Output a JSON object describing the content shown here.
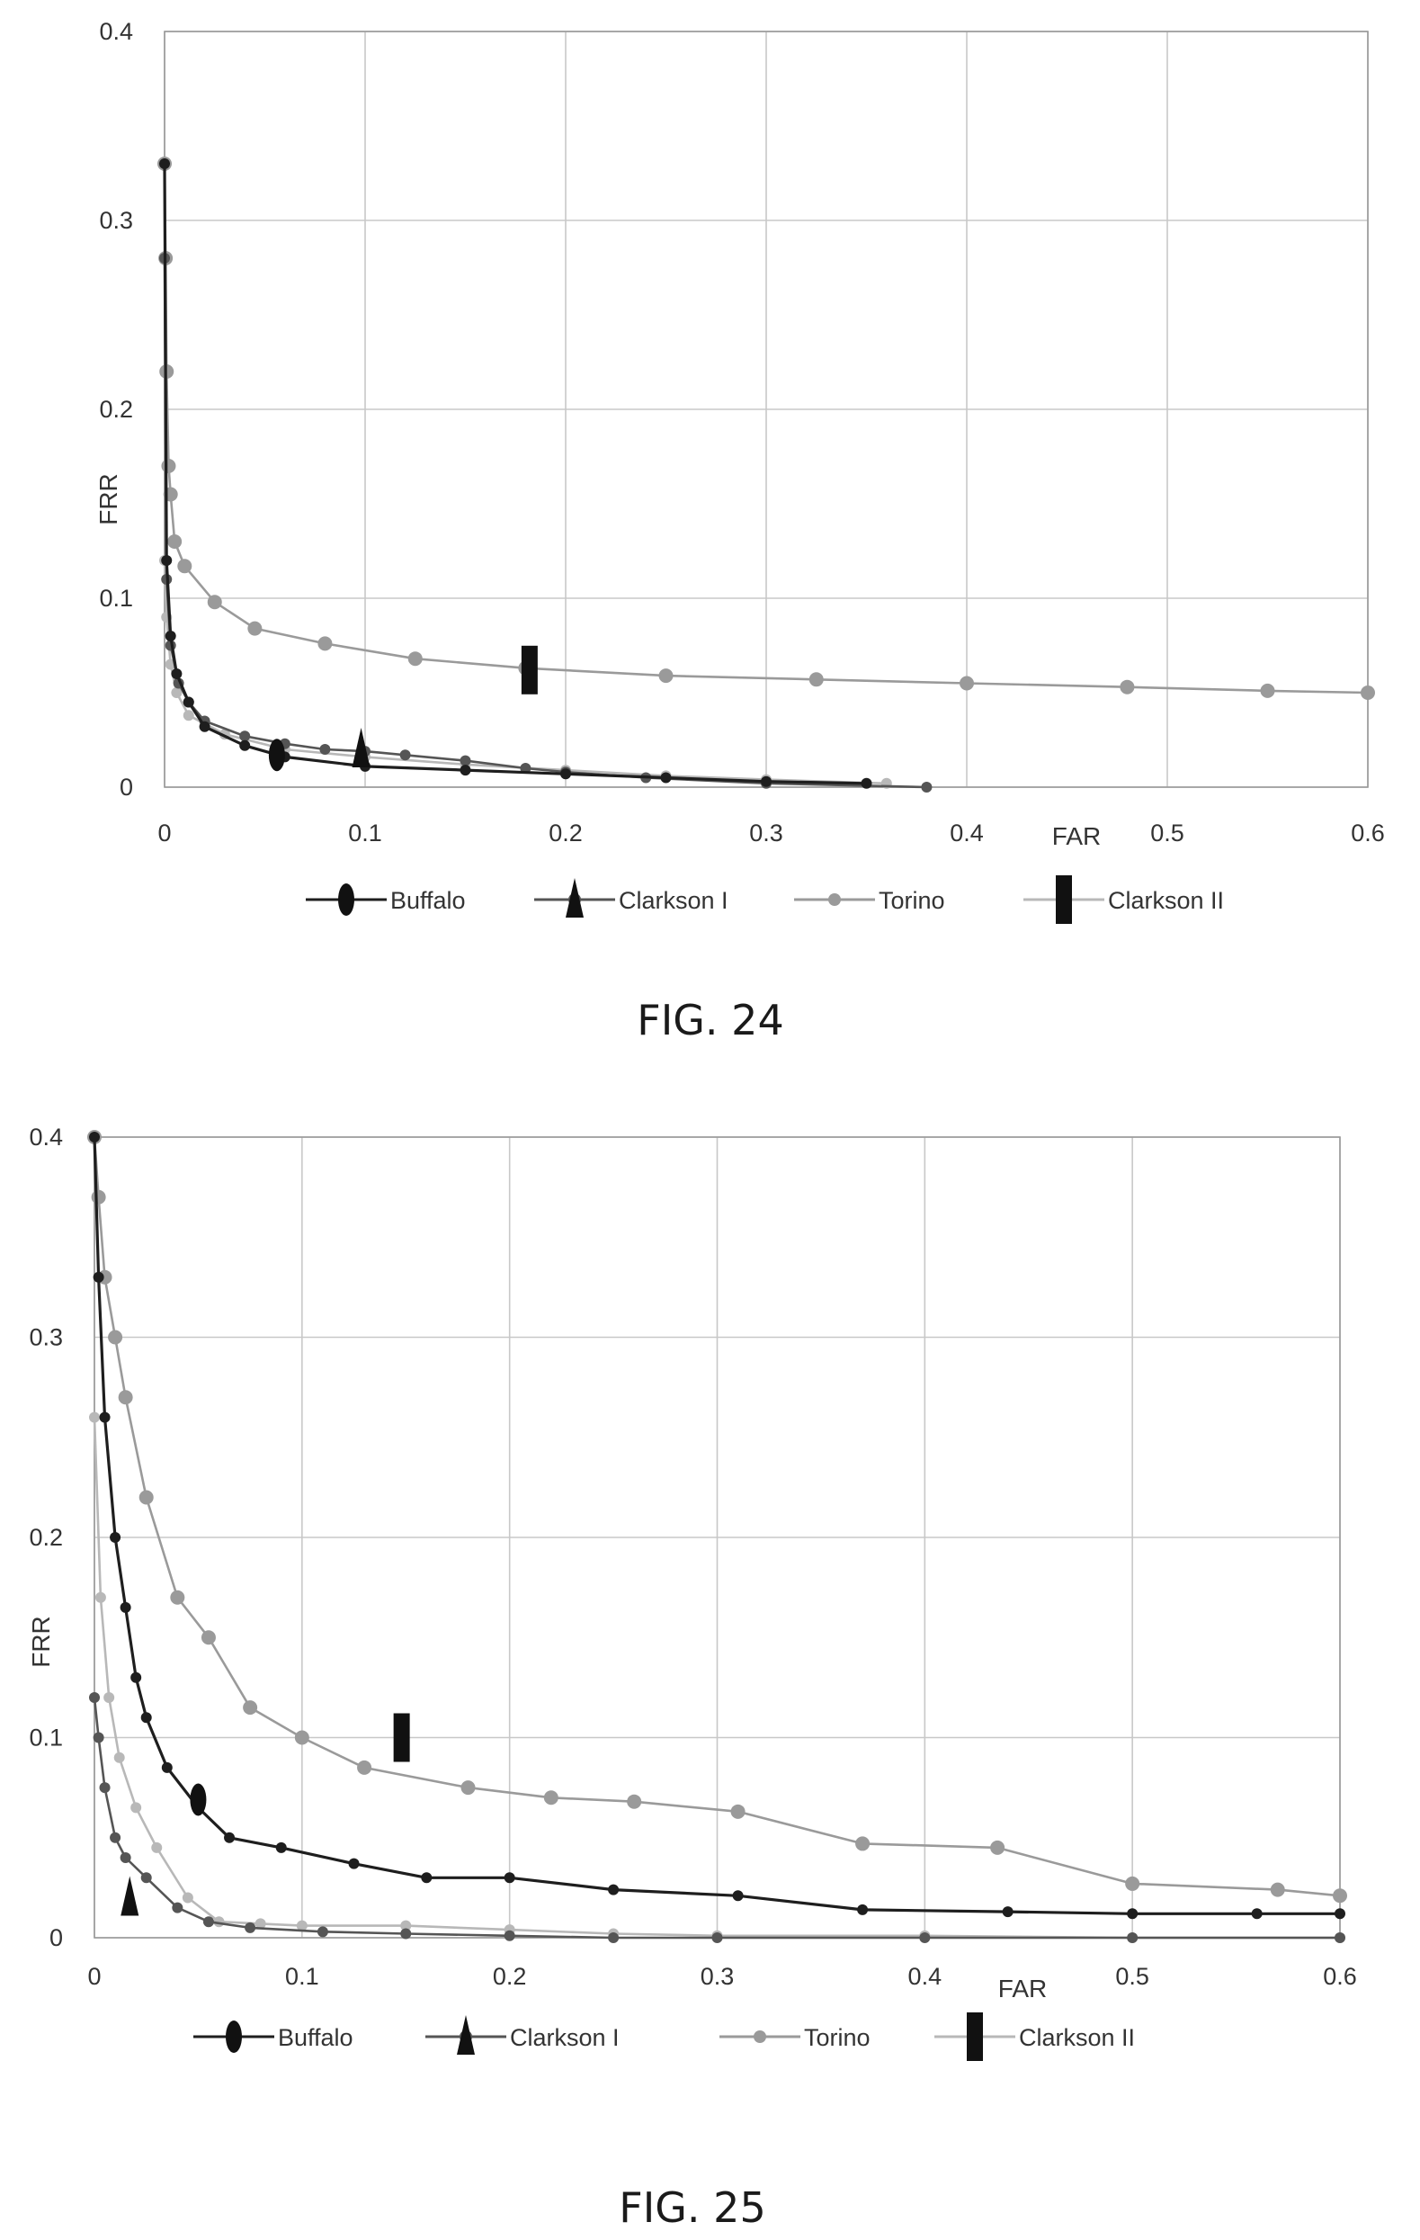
{
  "figures": [
    {
      "caption": "FIG. 24",
      "chart_data": {
        "type": "line",
        "title": "",
        "xlabel": "FAR",
        "ylabel": "FRR",
        "xlim": [
          0,
          0.6
        ],
        "ylim": [
          0,
          0.4
        ],
        "xticks": [
          0,
          0.1,
          0.2,
          0.3,
          0.4,
          0.5,
          0.6
        ],
        "xtick_labels": [
          "0",
          "0.1",
          "0.2",
          "0.3",
          "0.4",
          "0.5",
          "0.6"
        ],
        "yticks": [
          0,
          0.1,
          0.2,
          0.3,
          0.4
        ],
        "ytick_labels": [
          "0",
          "0.1",
          "0.2",
          "0.3",
          "0.4"
        ],
        "grid": true,
        "legend_position": "bottom",
        "series": [
          {
            "name": "Buffalo",
            "color": "#1e1e1e",
            "marker": "dot",
            "x": [
              0,
              0.001,
              0.003,
              0.006,
              0.012,
              0.02,
              0.04,
              0.06,
              0.1,
              0.15,
              0.2,
              0.25,
              0.3,
              0.35
            ],
            "y": [
              0.33,
              0.12,
              0.08,
              0.06,
              0.045,
              0.032,
              0.022,
              0.016,
              0.011,
              0.009,
              0.007,
              0.005,
              0.003,
              0.002
            ]
          },
          {
            "name": "Clarkson I",
            "color": "#555555",
            "marker": "dot",
            "x": [
              0,
              0.001,
              0.003,
              0.007,
              0.012,
              0.02,
              0.04,
              0.06,
              0.08,
              0.1,
              0.12,
              0.15,
              0.18,
              0.2,
              0.24,
              0.3,
              0.38
            ],
            "y": [
              0.28,
              0.11,
              0.075,
              0.055,
              0.045,
              0.035,
              0.027,
              0.023,
              0.02,
              0.019,
              0.017,
              0.014,
              0.01,
              0.008,
              0.005,
              0.002,
              0.0
            ]
          },
          {
            "name": "Torino",
            "color": "#9a9a9a",
            "marker": "dot",
            "x": [
              0,
              0.0005,
              0.001,
              0.002,
              0.003,
              0.005,
              0.01,
              0.025,
              0.045,
              0.08,
              0.125,
              0.18,
              0.25,
              0.325,
              0.4,
              0.48,
              0.55,
              0.6
            ],
            "y": [
              0.33,
              0.28,
              0.22,
              0.17,
              0.155,
              0.13,
              0.117,
              0.098,
              0.084,
              0.076,
              0.068,
              0.063,
              0.059,
              0.057,
              0.055,
              0.053,
              0.051,
              0.05
            ]
          },
          {
            "name": "Clarkson II",
            "color": "#b8b8b8",
            "marker": "dot",
            "x": [
              0,
              0.001,
              0.003,
              0.006,
              0.012,
              0.03,
              0.06,
              0.1,
              0.15,
              0.2,
              0.25,
              0.3,
              0.36
            ],
            "y": [
              0.12,
              0.09,
              0.065,
              0.05,
              0.038,
              0.028,
              0.02,
              0.016,
              0.012,
              0.009,
              0.006,
              0.004,
              0.002
            ]
          }
        ],
        "markers": [
          {
            "series": "Buffalo",
            "shape": "ellipse",
            "x": 0.056,
            "y": 0.017
          },
          {
            "series": "Clarkson I",
            "shape": "triangle",
            "x": 0.098,
            "y": 0.02
          },
          {
            "series": "Clarkson II",
            "shape": "rect",
            "x": 0.182,
            "y": 0.062
          }
        ]
      }
    },
    {
      "caption": "FIG. 25",
      "chart_data": {
        "type": "line",
        "title": "",
        "xlabel": "FAR",
        "ylabel": "FRR",
        "xlim": [
          0,
          0.6
        ],
        "ylim": [
          0,
          0.4
        ],
        "xticks": [
          0,
          0.1,
          0.2,
          0.3,
          0.4,
          0.5,
          0.6
        ],
        "xtick_labels": [
          "0",
          "0.1",
          "0.2",
          "0.3",
          "0.4",
          "0.5",
          "0.6"
        ],
        "yticks": [
          0,
          0.1,
          0.2,
          0.3,
          0.4
        ],
        "ytick_labels": [
          "0",
          "0.1",
          "0.2",
          "0.3",
          "0.4"
        ],
        "grid": true,
        "legend_position": "bottom",
        "series": [
          {
            "name": "Buffalo",
            "color": "#1e1e1e",
            "marker": "dot",
            "x": [
              0.0,
              0.002,
              0.005,
              0.01,
              0.015,
              0.02,
              0.025,
              0.035,
              0.05,
              0.065,
              0.09,
              0.125,
              0.16,
              0.2,
              0.25,
              0.31,
              0.37,
              0.44,
              0.5,
              0.56,
              0.6
            ],
            "y": [
              0.4,
              0.33,
              0.26,
              0.2,
              0.165,
              0.13,
              0.11,
              0.085,
              0.065,
              0.05,
              0.045,
              0.037,
              0.03,
              0.03,
              0.024,
              0.021,
              0.014,
              0.013,
              0.012,
              0.012,
              0.012
            ]
          },
          {
            "name": "Clarkson I",
            "color": "#555555",
            "marker": "dot",
            "x": [
              0.0,
              0.002,
              0.005,
              0.01,
              0.015,
              0.025,
              0.04,
              0.055,
              0.075,
              0.11,
              0.15,
              0.2,
              0.25,
              0.3,
              0.4,
              0.5,
              0.6
            ],
            "y": [
              0.12,
              0.1,
              0.075,
              0.05,
              0.04,
              0.03,
              0.015,
              0.008,
              0.005,
              0.003,
              0.002,
              0.001,
              0.0,
              0.0,
              0.0,
              0.0,
              0.0
            ]
          },
          {
            "name": "Torino",
            "color": "#9a9a9a",
            "marker": "dot",
            "x": [
              0.0,
              0.002,
              0.005,
              0.01,
              0.015,
              0.025,
              0.04,
              0.055,
              0.075,
              0.1,
              0.13,
              0.18,
              0.22,
              0.26,
              0.31,
              0.37,
              0.435,
              0.5,
              0.57,
              0.6
            ],
            "y": [
              0.4,
              0.37,
              0.33,
              0.3,
              0.27,
              0.22,
              0.17,
              0.15,
              0.115,
              0.1,
              0.085,
              0.075,
              0.07,
              0.068,
              0.063,
              0.047,
              0.045,
              0.027,
              0.024,
              0.021
            ]
          },
          {
            "name": "Clarkson II",
            "color": "#b8b8b8",
            "marker": "dot",
            "x": [
              0.0,
              0.003,
              0.007,
              0.012,
              0.02,
              0.03,
              0.045,
              0.06,
              0.08,
              0.1,
              0.15,
              0.2,
              0.25,
              0.3,
              0.4,
              0.5,
              0.6
            ],
            "y": [
              0.26,
              0.17,
              0.12,
              0.09,
              0.065,
              0.045,
              0.02,
              0.008,
              0.007,
              0.006,
              0.006,
              0.004,
              0.002,
              0.001,
              0.001,
              0.0,
              0.0
            ]
          }
        ],
        "markers": [
          {
            "series": "Buffalo",
            "shape": "ellipse",
            "x": 0.05,
            "y": 0.069
          },
          {
            "series": "Clarkson I",
            "shape": "triangle",
            "x": 0.017,
            "y": 0.02
          },
          {
            "series": "Clarkson II",
            "shape": "rect",
            "x": 0.148,
            "y": 0.1
          }
        ]
      }
    }
  ]
}
